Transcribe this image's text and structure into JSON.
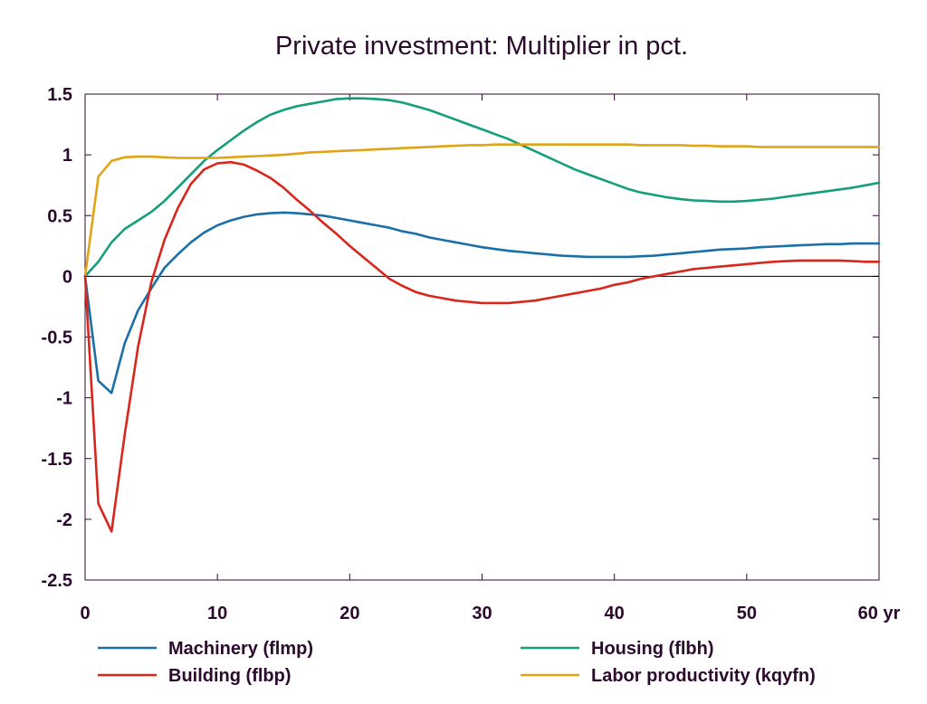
{
  "chart_data": {
    "type": "line",
    "title": "Private investment: Multiplier in pct.",
    "x_unit_label": "yr",
    "xlim": [
      0,
      60
    ],
    "ylim": [
      -2.5,
      1.5
    ],
    "xticks": [
      0,
      10,
      20,
      30,
      40,
      50,
      60
    ],
    "yticks": [
      1.5,
      1,
      0.5,
      0,
      -0.5,
      -1,
      -1.5,
      -2,
      -2.5
    ],
    "zero_line": true,
    "grid": false,
    "legend_position": "bottom",
    "x": [
      0,
      1,
      2,
      3,
      4,
      5,
      6,
      7,
      8,
      9,
      10,
      11,
      12,
      13,
      14,
      15,
      16,
      17,
      18,
      19,
      20,
      21,
      22,
      23,
      24,
      25,
      26,
      27,
      28,
      29,
      30,
      31,
      32,
      33,
      34,
      35,
      36,
      37,
      38,
      39,
      40,
      41,
      42,
      43,
      44,
      45,
      46,
      47,
      48,
      49,
      50,
      51,
      52,
      53,
      54,
      55,
      56,
      57,
      58,
      59,
      60
    ],
    "series": [
      {
        "name": "Machinery (flmp)",
        "color": "#1a6fa8",
        "values": [
          0,
          -0.86,
          -0.96,
          -0.55,
          -0.28,
          -0.1,
          0.07,
          0.18,
          0.28,
          0.36,
          0.42,
          0.46,
          0.49,
          0.51,
          0.52,
          0.525,
          0.52,
          0.51,
          0.5,
          0.48,
          0.46,
          0.44,
          0.42,
          0.4,
          0.37,
          0.35,
          0.32,
          0.3,
          0.28,
          0.26,
          0.24,
          0.225,
          0.21,
          0.2,
          0.19,
          0.18,
          0.17,
          0.165,
          0.16,
          0.16,
          0.16,
          0.16,
          0.165,
          0.17,
          0.18,
          0.19,
          0.2,
          0.21,
          0.22,
          0.225,
          0.23,
          0.24,
          0.245,
          0.25,
          0.255,
          0.26,
          0.265,
          0.265,
          0.27,
          0.27,
          0.27
        ]
      },
      {
        "name": "Building (flbp)",
        "color": "#d9261c",
        "values": [
          0,
          -1.87,
          -2.1,
          -1.3,
          -0.58,
          -0.05,
          0.3,
          0.56,
          0.76,
          0.88,
          0.93,
          0.94,
          0.92,
          0.87,
          0.81,
          0.73,
          0.63,
          0.54,
          0.44,
          0.35,
          0.25,
          0.16,
          0.07,
          -0.02,
          -0.08,
          -0.13,
          -0.16,
          -0.18,
          -0.2,
          -0.21,
          -0.22,
          -0.22,
          -0.22,
          -0.21,
          -0.2,
          -0.18,
          -0.16,
          -0.14,
          -0.12,
          -0.1,
          -0.07,
          -0.05,
          -0.02,
          0,
          0.02,
          0.04,
          0.06,
          0.07,
          0.08,
          0.09,
          0.1,
          0.11,
          0.12,
          0.125,
          0.13,
          0.13,
          0.13,
          0.13,
          0.125,
          0.12,
          0.12
        ]
      },
      {
        "name": "Housing (flbh)",
        "color": "#159e7c",
        "values": [
          0,
          0.12,
          0.28,
          0.39,
          0.46,
          0.53,
          0.62,
          0.73,
          0.84,
          0.95,
          1.04,
          1.12,
          1.2,
          1.27,
          1.33,
          1.37,
          1.4,
          1.42,
          1.44,
          1.46,
          1.465,
          1.465,
          1.46,
          1.45,
          1.43,
          1.4,
          1.37,
          1.33,
          1.29,
          1.25,
          1.21,
          1.17,
          1.13,
          1.08,
          1.03,
          0.98,
          0.93,
          0.88,
          0.84,
          0.8,
          0.76,
          0.72,
          0.69,
          0.67,
          0.65,
          0.635,
          0.625,
          0.62,
          0.615,
          0.615,
          0.62,
          0.63,
          0.64,
          0.655,
          0.67,
          0.685,
          0.7,
          0.715,
          0.73,
          0.75,
          0.77
        ]
      },
      {
        "name": "Labor productivity (kqyfn)",
        "color": "#e0a417",
        "values": [
          0,
          0.82,
          0.95,
          0.98,
          0.985,
          0.985,
          0.98,
          0.975,
          0.975,
          0.975,
          0.975,
          0.98,
          0.985,
          0.99,
          0.995,
          1.0,
          1.01,
          1.02,
          1.025,
          1.03,
          1.035,
          1.04,
          1.045,
          1.05,
          1.055,
          1.06,
          1.065,
          1.07,
          1.075,
          1.08,
          1.08,
          1.085,
          1.085,
          1.085,
          1.085,
          1.085,
          1.085,
          1.085,
          1.085,
          1.085,
          1.085,
          1.085,
          1.08,
          1.08,
          1.08,
          1.08,
          1.075,
          1.075,
          1.07,
          1.07,
          1.07,
          1.065,
          1.065,
          1.065,
          1.065,
          1.065,
          1.065,
          1.065,
          1.065,
          1.065,
          1.065
        ]
      }
    ]
  }
}
